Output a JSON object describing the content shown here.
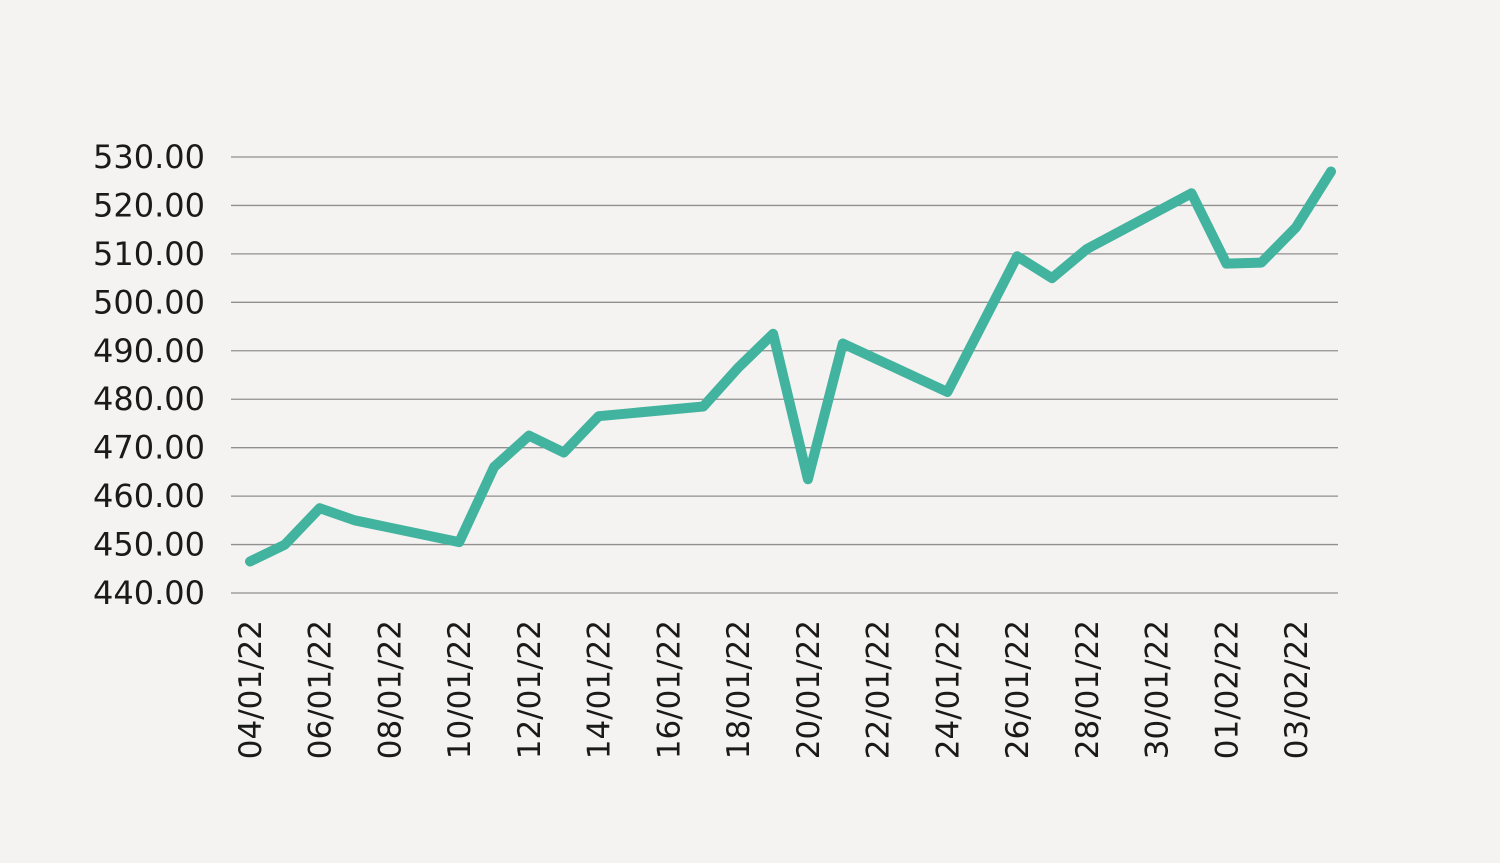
{
  "chart_data": {
    "type": "line",
    "title": "",
    "xlabel": "",
    "ylabel": "",
    "ylim": [
      440,
      530
    ],
    "y_ticks": [
      "440.00",
      "450.00",
      "460.00",
      "470.00",
      "480.00",
      "490.00",
      "500.00",
      "510.00",
      "520.00",
      "530.00"
    ],
    "x_tick_labels": [
      "04/01/22",
      "06/01/22",
      "08/01/22",
      "10/01/22",
      "12/01/22",
      "14/01/22",
      "16/01/22",
      "18/01/22",
      "20/01/22",
      "22/01/22",
      "24/01/22",
      "26/01/22",
      "28/01/22",
      "30/01/22",
      "01/02/22",
      "03/02/22"
    ],
    "grid": true,
    "legend": "none",
    "color": "#42b39e",
    "x": [
      "04/01/22",
      "05/01/22",
      "06/01/22",
      "07/01/22",
      "10/01/22",
      "11/01/22",
      "12/01/22",
      "13/01/22",
      "14/01/22",
      "17/01/22",
      "18/01/22",
      "19/01/22",
      "20/01/22",
      "21/01/22",
      "24/01/22",
      "25/01/22",
      "26/01/22",
      "27/01/22",
      "28/01/22",
      "31/01/22",
      "01/02/22",
      "02/02/22",
      "03/02/22",
      "04/02/22"
    ],
    "values": [
      446.5,
      450.0,
      457.5,
      455.0,
      450.5,
      466.0,
      472.5,
      469.0,
      476.5,
      478.5,
      486.5,
      493.5,
      463.5,
      491.5,
      481.5,
      495.5,
      509.5,
      505.0,
      511.0,
      522.5,
      508.0,
      508.2,
      515.5,
      527.0
    ]
  }
}
